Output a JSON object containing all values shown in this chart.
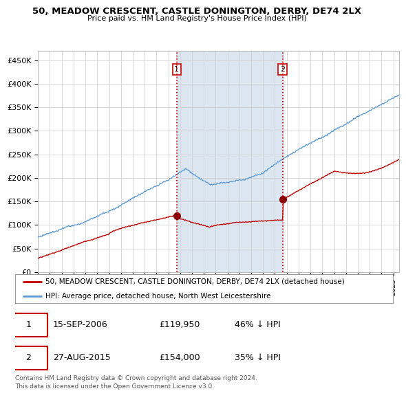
{
  "title": "50, MEADOW CRESCENT, CASTLE DONINGTON, DERBY, DE74 2LX",
  "subtitle": "Price paid vs. HM Land Registry's House Price Index (HPI)",
  "ylabel_ticks": [
    "£0",
    "£50K",
    "£100K",
    "£150K",
    "£200K",
    "£250K",
    "£300K",
    "£350K",
    "£400K",
    "£450K"
  ],
  "ytick_values": [
    0,
    50000,
    100000,
    150000,
    200000,
    250000,
    300000,
    350000,
    400000,
    450000
  ],
  "ylim": [
    0,
    470000
  ],
  "xlim_start": 1995.0,
  "xlim_end": 2025.5,
  "hpi_color": "#5b9bd5",
  "price_color": "#c00000",
  "sale1_x": 2006.71,
  "sale1_y": 119950,
  "sale2_x": 2015.65,
  "sale2_y": 154000,
  "legend_line1": "50, MEADOW CRESCENT, CASTLE DONINGTON, DERBY, DE74 2LX (detached house)",
  "legend_line2": "HPI: Average price, detached house, North West Leicestershire",
  "table_row1": [
    "1",
    "15-SEP-2006",
    "£119,950",
    "46% ↓ HPI"
  ],
  "table_row2": [
    "2",
    "27-AUG-2015",
    "£154,000",
    "35% ↓ HPI"
  ],
  "footer": "Contains HM Land Registry data © Crown copyright and database right 2024.\nThis data is licensed under the Open Government Licence v3.0.",
  "vline_color": "#cc0000",
  "bg_color": "#dce6f1",
  "plot_bg": "#ffffff"
}
